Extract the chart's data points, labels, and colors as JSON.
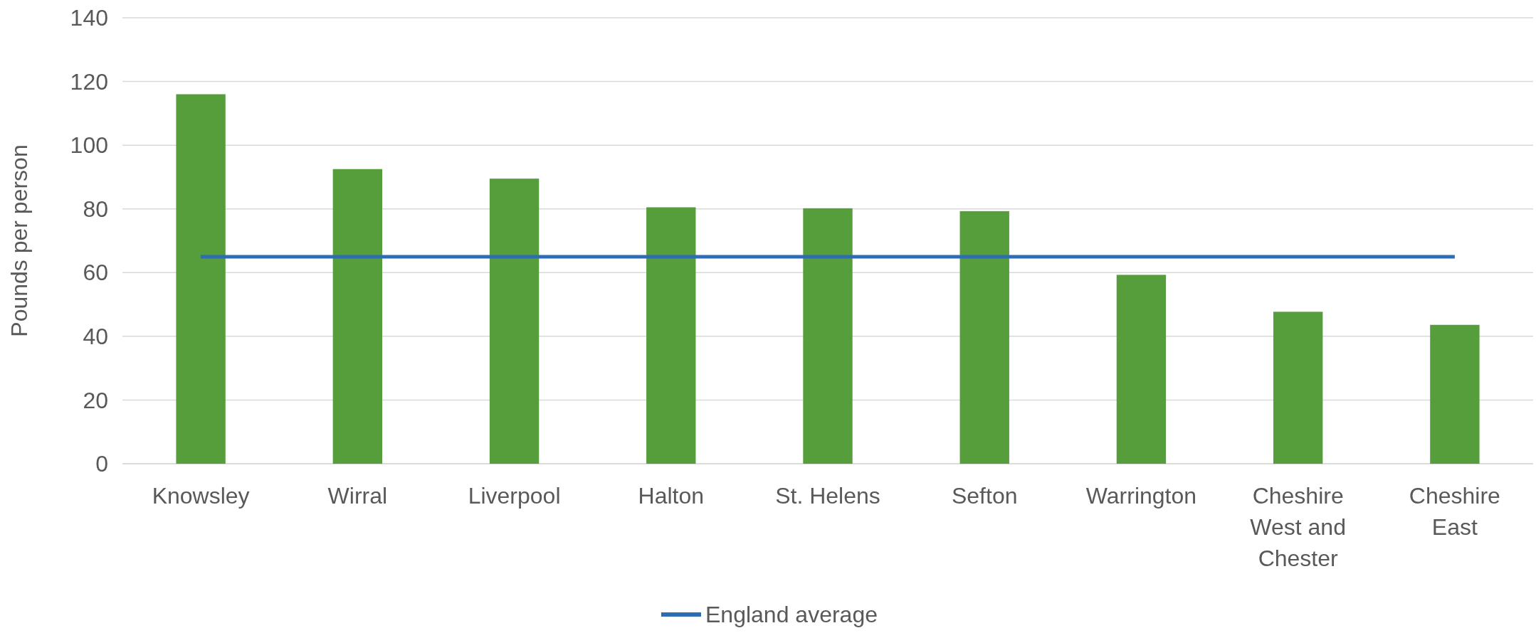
{
  "chart_data": {
    "type": "bar",
    "ylabel": "Pounds per person",
    "categories": [
      "Knowsley",
      "Wirral",
      "Liverpool",
      "Halton",
      "St. Helens",
      "Sefton",
      "Warrington",
      "Cheshire West and Chester",
      "Cheshire East"
    ],
    "series": [
      {
        "color": "#559e3b",
        "values": [
          116,
          92.5,
          89.5,
          80.5,
          80.2,
          79.3,
          59.3,
          47.7,
          43.6
        ]
      },
      {
        "type": "line",
        "name": "England average",
        "color": "#2e6db4",
        "values": [
          65,
          65,
          65,
          65,
          65,
          65,
          65,
          65,
          65
        ]
      }
    ],
    "ylim": [
      0,
      140
    ],
    "yticks": [
      0,
      20,
      40,
      60,
      80,
      100,
      120,
      140
    ],
    "grid": "y",
    "legend": "bottom"
  }
}
